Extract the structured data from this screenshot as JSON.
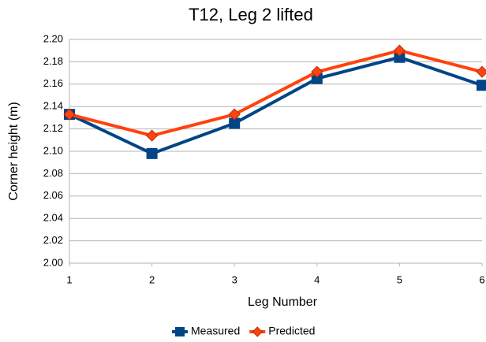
{
  "chart_data": {
    "type": "line",
    "title": "T12, Leg 2 lifted",
    "x_label": "Leg Number",
    "y_label": "Corner height (m)",
    "x": [
      1,
      2,
      3,
      4,
      5,
      6
    ],
    "series": [
      {
        "name": "Measured",
        "color": "#004586",
        "marker": "square",
        "values": [
          2.133,
          2.098,
          2.125,
          2.165,
          2.184,
          2.159
        ]
      },
      {
        "name": "Predicted",
        "color": "#ff420e",
        "marker": "diamond",
        "values": [
          2.133,
          2.114,
          2.133,
          2.171,
          2.19,
          2.171
        ]
      }
    ],
    "xlim": [
      1,
      6
    ],
    "xticks": [
      1,
      2,
      3,
      4,
      5,
      6
    ],
    "ylim": [
      2.0,
      2.2
    ],
    "yticks": [
      {
        "value": 2.0,
        "label": "2.00"
      },
      2.02,
      2.04,
      2.06,
      2.08,
      {
        "value": 2.1,
        "label": "2.10"
      },
      2.12,
      2.14,
      2.16,
      2.18,
      {
        "value": 2.2,
        "label": "2.20"
      }
    ],
    "grid": true,
    "legend": "bottom"
  }
}
